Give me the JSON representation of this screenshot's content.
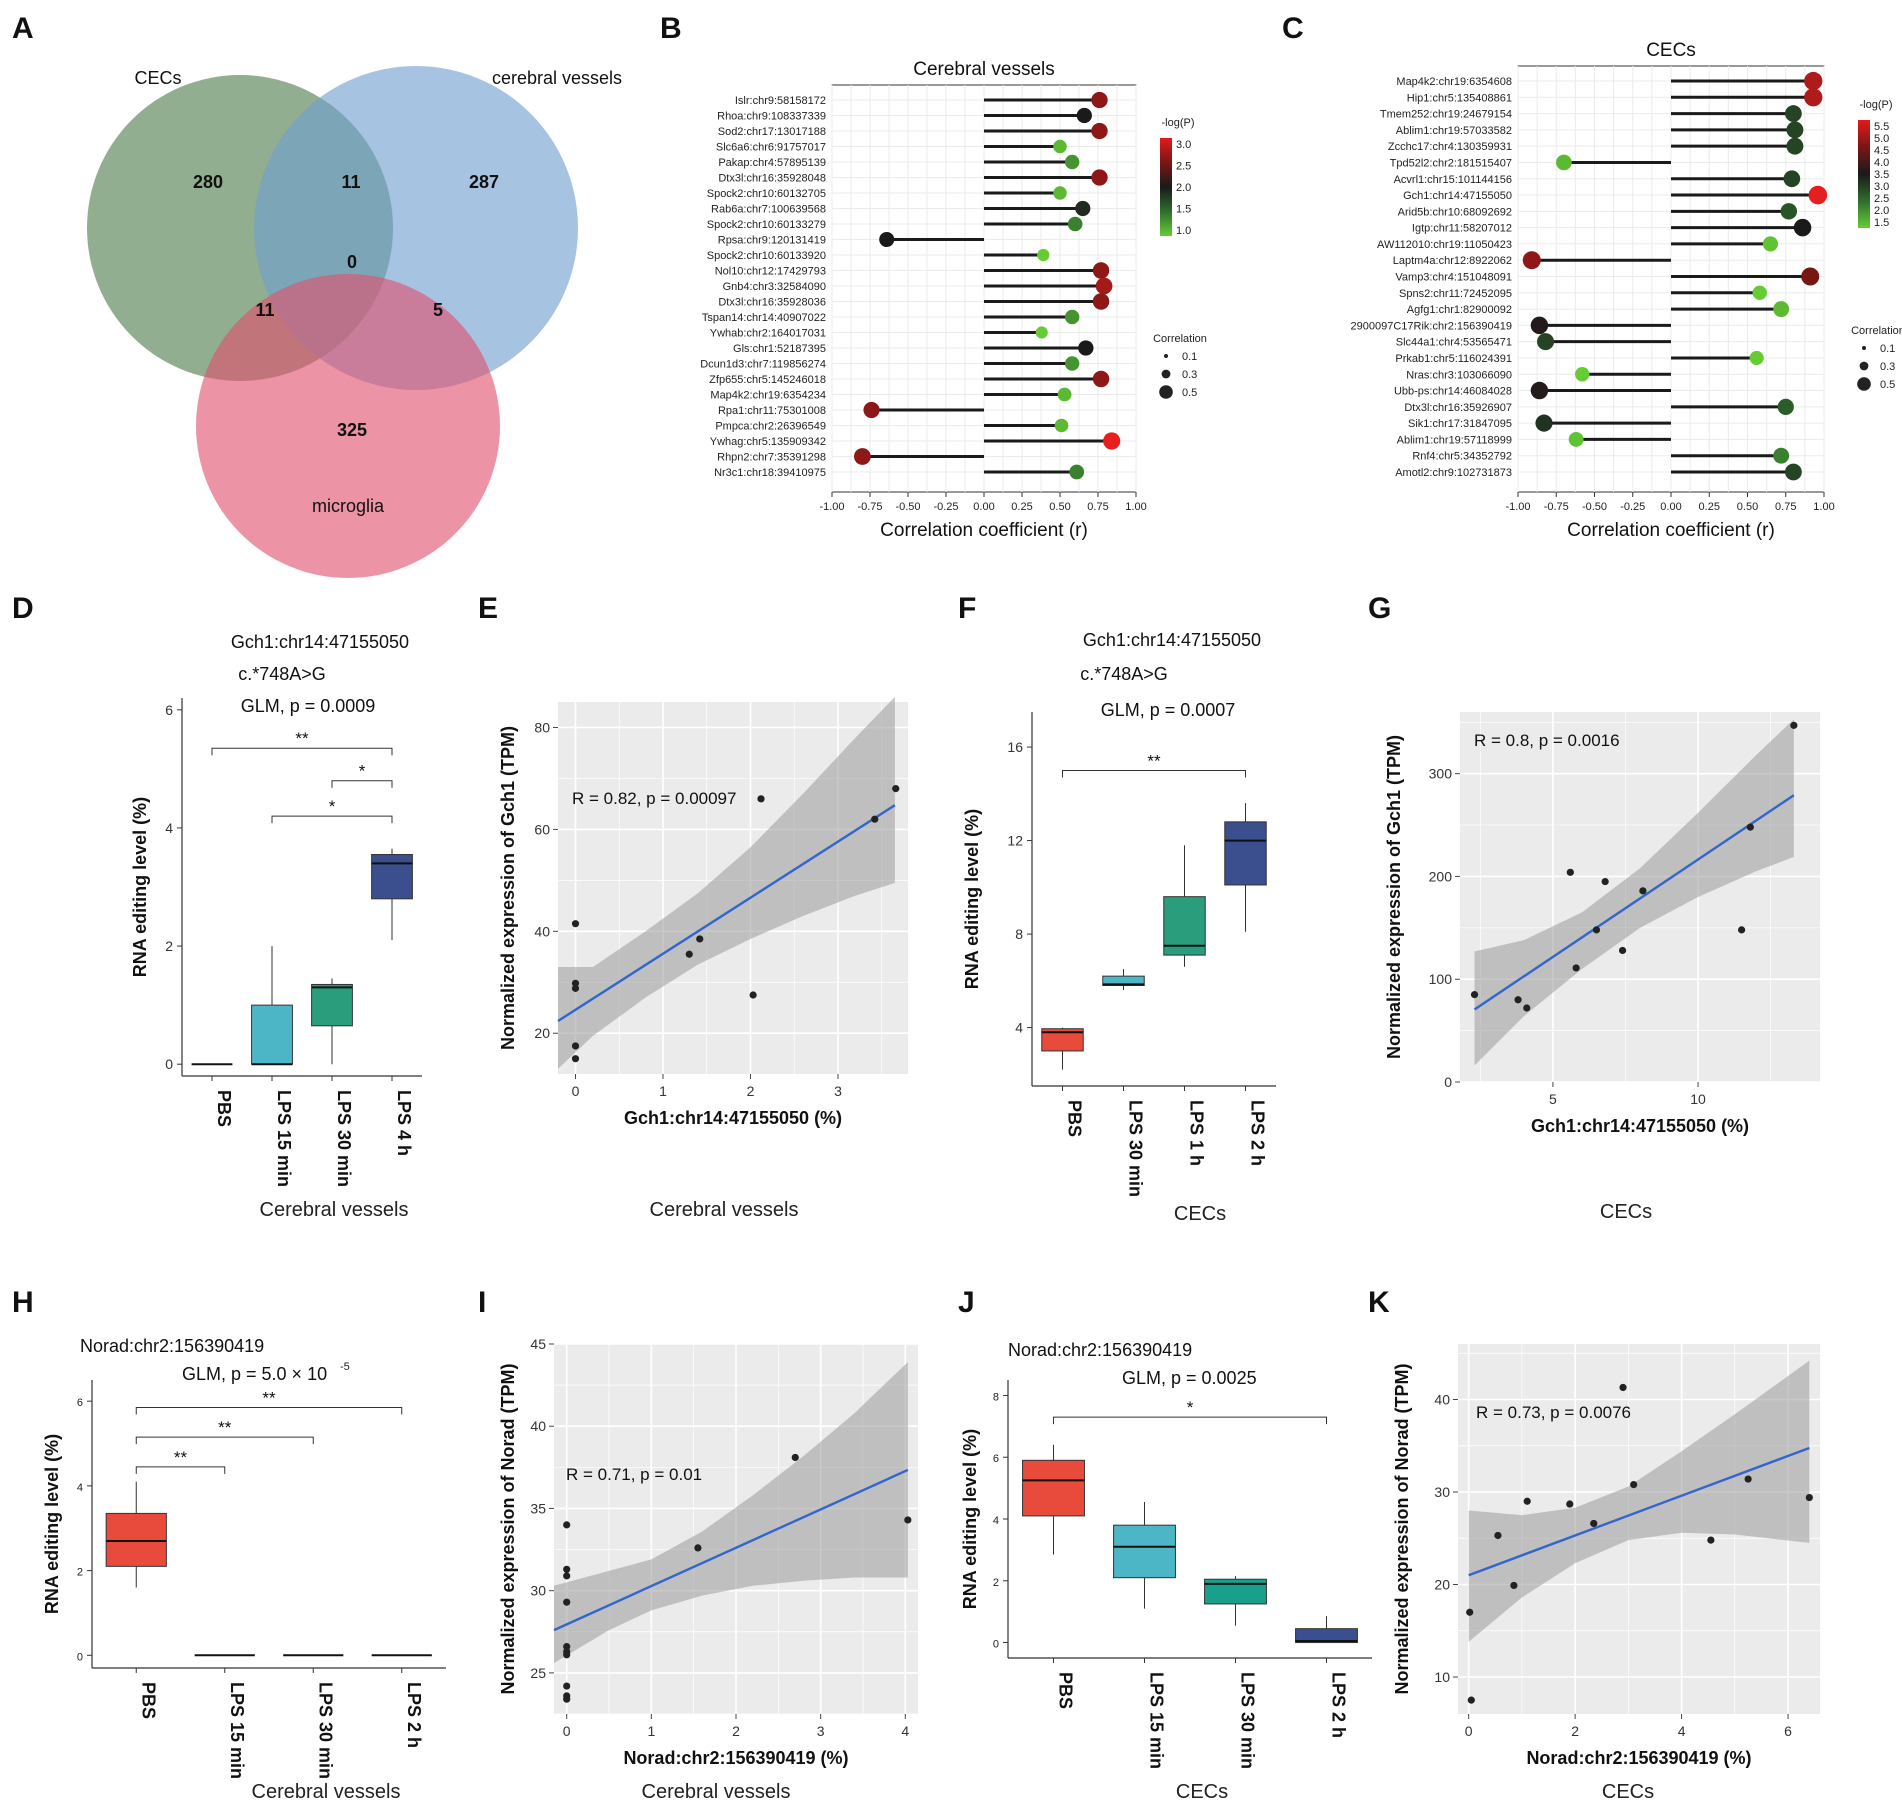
{
  "panel_letters": [
    "A",
    "B",
    "C",
    "D",
    "E",
    "F",
    "G",
    "H",
    "I",
    "J",
    "K"
  ],
  "chart_data": [
    {
      "panel": "A",
      "type": "venn",
      "sets": [
        {
          "name": "CECs",
          "color": "#4e7d4e"
        },
        {
          "name": "cerebral vessels",
          "color": "#6fa0d0"
        },
        {
          "name": "microglia",
          "color": "#e0506e"
        }
      ],
      "regions": {
        "cecs_only": "280",
        "vessels_only": "287",
        "microglia_only": "325",
        "cecs_vessels": "11",
        "cecs_microglia": "11",
        "vessels_microglia": "5",
        "all": "0"
      }
    },
    {
      "panel": "B",
      "type": "lollipop",
      "title": "Cerebral vessels",
      "xlabel": "Correlation coefficient (r)",
      "xlim": [
        -1,
        1
      ],
      "xticks": [
        "-1.00",
        "-0.75",
        "-0.50",
        "-0.25",
        "0.00",
        "0.25",
        "0.50",
        "0.75",
        "1.00"
      ],
      "genes": [
        "Islr:chr9:58158172",
        "Rhoa:chr9:108337339",
        "Sod2:chr17:13017188",
        "Slc6a6:chr6:91757017",
        "Pakap:chr4:57895139",
        "Dtx3l:chr16:35928048",
        "Spock2:chr10:60132705",
        "Rab6a:chr7:100639568",
        "Spock2:chr10:60133279",
        "Rpsa:chr9:120131419",
        "Spock2:chr10:60133920",
        "Nol10:chr12:17429793",
        "Gnb4:chr3:32584090",
        "Dtx3l:chr16:35928036",
        "Tspan14:chr14:40907022",
        "Ywhab:chr2:164017031",
        "Gls:chr1:52187395",
        "Dcun1d3:chr7:119856274",
        "Zfp655:chr5:145246018",
        "Map4k2:chr19:6354234",
        "Rpa1:chr11:75301008",
        "Pmpca:chr2:26396549",
        "Ywhag:chr5:135909342",
        "Rhpn2:chr7:35391298",
        "Nr3c1:chr18:39410975"
      ],
      "r": [
        0.76,
        0.66,
        0.76,
        0.5,
        0.58,
        0.76,
        0.5,
        0.65,
        0.6,
        -0.64,
        0.39,
        0.77,
        0.79,
        0.77,
        0.58,
        0.38,
        0.67,
        0.58,
        0.77,
        0.53,
        -0.74,
        0.51,
        0.84,
        -0.8,
        0.61
      ],
      "neglogp": [
        2.6,
        2.0,
        2.6,
        1.1,
        1.3,
        2.6,
        1.1,
        1.9,
        1.4,
        2.0,
        1.0,
        2.6,
        2.7,
        2.6,
        1.3,
        1.0,
        2.0,
        1.3,
        2.6,
        1.1,
        2.6,
        1.1,
        3.0,
        2.6,
        1.4
      ],
      "legend_color_title": "-log(P)",
      "legend_color_ticks": [
        "3.0",
        "2.5",
        "2.0",
        "1.5",
        "1.0"
      ],
      "legend_size_title": "Correlation",
      "legend_size_ticks": [
        "0.1",
        "0.3",
        "0.5"
      ]
    },
    {
      "panel": "C",
      "type": "lollipop",
      "title": "CECs",
      "xlabel": "Correlation coefficient (r)",
      "xlim": [
        -1,
        1
      ],
      "xticks": [
        "-1.00",
        "-0.75",
        "-0.50",
        "-0.25",
        "0.00",
        "0.25",
        "0.50",
        "0.75",
        "1.00"
      ],
      "genes": [
        "Map4k2:chr19:6354608",
        "Hip1:chr5:135408861",
        "Tmem252:chr19:24679154",
        "Ablim1:chr19:57033582",
        "Zcchc17:chr4:130359931",
        "Tpd52l2:chr2:181515407",
        "Acvrl1:chr15:101144156",
        "Gch1:chr14:47155050",
        "Arid5b:chr10:68092692",
        "Igtp:chr11:58207012",
        "AW112010:chr19:11050423",
        "Laptm4a:chr12:8922062",
        "Vamp3:chr4:151048091",
        "Spns2:chr11:72452095",
        "Agfg1:chr1:82900092",
        "2900097C17Rik:chr2:156390419",
        "Slc44a1:chr4:53565471",
        "Prkab1:chr5:116024391",
        "Nras:chr3:103066090",
        "Ubb-ps:chr14:46084028",
        "Dtx3l:chr16:35926907",
        "Sik1:chr17:31847095",
        "Ablim1:chr19:57118999",
        "Rnf4:chr5:34352792",
        "Amotl2:chr9:102731873"
      ],
      "r": [
        0.93,
        0.93,
        0.8,
        0.81,
        0.81,
        -0.7,
        0.79,
        0.96,
        0.77,
        0.86,
        0.65,
        -0.91,
        0.91,
        0.58,
        0.72,
        -0.86,
        -0.82,
        0.56,
        -0.58,
        -0.86,
        0.75,
        -0.83,
        -0.62,
        0.72,
        0.8
      ],
      "neglogp": [
        5.0,
        5.0,
        3.0,
        3.0,
        3.0,
        1.7,
        3.0,
        5.6,
        2.8,
        3.5,
        1.6,
        4.7,
        4.5,
        1.5,
        1.7,
        3.6,
        3.0,
        1.5,
        1.5,
        3.6,
        2.7,
        3.2,
        1.6,
        2.3,
        3.0
      ],
      "legend_color_title": "-log(P)",
      "legend_color_ticks": [
        "5.5",
        "5.0",
        "4.5",
        "4.0",
        "3.5",
        "3.0",
        "2.5",
        "2.0",
        "1.5"
      ],
      "legend_size_title": "Correlation",
      "legend_size_ticks": [
        "0.1",
        "0.3",
        "0.5"
      ]
    },
    {
      "panel": "D",
      "type": "box",
      "title_lines": [
        "Gch1:chr14:47155050",
        "c.*748A>G",
        "GLM, p = 0.0009"
      ],
      "ylabel": "RNA editing level (%)",
      "ylim": [
        -0.2,
        6.2
      ],
      "yticks": [
        0,
        2,
        4,
        6
      ],
      "categories": [
        "PBS",
        "LPS 15 min",
        "LPS 30 min",
        "LPS 4 h"
      ],
      "colors": [
        "#e84b3c",
        "#4db6c6",
        "#2a9d7c",
        "#3b4f8f"
      ],
      "boxes": [
        {
          "q1": 0,
          "median": 0,
          "q3": 0,
          "lo": 0,
          "hi": 0
        },
        {
          "q1": 0,
          "median": 0,
          "q3": 1.0,
          "lo": 0,
          "hi": 2.0
        },
        {
          "q1": 0.65,
          "median": 1.3,
          "q3": 1.35,
          "lo": 0,
          "hi": 1.45
        },
        {
          "q1": 2.8,
          "median": 3.4,
          "q3": 3.55,
          "lo": 2.1,
          "hi": 3.65
        }
      ],
      "brackets": [
        {
          "from": 0,
          "to": 3,
          "y": 5.35,
          "label": "**"
        },
        {
          "from": 2,
          "to": 3,
          "y": 4.8,
          "label": "*"
        },
        {
          "from": 1,
          "to": 3,
          "y": 4.2,
          "label": "*"
        }
      ],
      "caption": "Cerebral vessels"
    },
    {
      "panel": "E",
      "type": "scatter",
      "xlabel": "Gch1:chr14:47155050 (%)",
      "ylabel": "Normalized expression of Gch1 (TPM)",
      "xlim": [
        -0.2,
        3.8
      ],
      "ylim": [
        12,
        85
      ],
      "xticks": [
        0,
        1,
        2,
        3
      ],
      "yticks": [
        20,
        40,
        60,
        80
      ],
      "x": [
        0,
        0,
        0,
        0,
        0,
        1.3,
        1.42,
        2.03,
        2.12,
        3.42,
        3.66
      ],
      "y": [
        41.5,
        29.8,
        28.8,
        17.5,
        15.0,
        35.5,
        38.5,
        27.5,
        66.0,
        62.0,
        68.0
      ],
      "fit": {
        "slope": 11.0,
        "intercept": 24.6
      },
      "band": [
        {
          "x": -0.2,
          "lo": 13.0,
          "hi": 33.0
        },
        {
          "x": 0.2,
          "lo": 19.5,
          "hi": 33.0
        },
        {
          "x": 0.8,
          "lo": 27.0,
          "hi": 40.0
        },
        {
          "x": 1.4,
          "lo": 33.5,
          "hi": 47.5
        },
        {
          "x": 2.0,
          "lo": 38.5,
          "hi": 56.5
        },
        {
          "x": 2.6,
          "lo": 43.0,
          "hi": 67.0
        },
        {
          "x": 3.2,
          "lo": 47.0,
          "hi": 78.0
        },
        {
          "x": 3.65,
          "lo": 49.5,
          "hi": 86.0
        }
      ],
      "stat": "R = 0.82, p = 0.00097",
      "caption": "Cerebral vessels"
    },
    {
      "panel": "F",
      "type": "box",
      "title_lines": [
        "Gch1:chr14:47155050",
        "c.*748A>G",
        "GLM, p = 0.0007"
      ],
      "ylabel": "RNA editing level (%)",
      "ylim": [
        1.5,
        17.5
      ],
      "yticks": [
        4,
        8,
        12,
        16
      ],
      "categories": [
        "PBS",
        "LPS 30 min",
        "LPS 1 h",
        "LPS  2 h"
      ],
      "colors": [
        "#e84b3c",
        "#4db6c6",
        "#2a9d7c",
        "#3b4f8f"
      ],
      "boxes": [
        {
          "q1": 3.0,
          "median": 3.8,
          "q3": 3.95,
          "lo": 2.2,
          "hi": 4.0
        },
        {
          "q1": 5.8,
          "median": 5.85,
          "q3": 6.2,
          "lo": 5.6,
          "hi": 6.5
        },
        {
          "q1": 7.1,
          "median": 7.5,
          "q3": 9.6,
          "lo": 6.6,
          "hi": 11.8
        },
        {
          "q1": 10.1,
          "median": 12.0,
          "q3": 12.8,
          "lo": 8.1,
          "hi": 13.6
        }
      ],
      "brackets": [
        {
          "from": 0,
          "to": 3,
          "y": 15.0,
          "label": "**"
        }
      ],
      "caption": "CECs"
    },
    {
      "panel": "G",
      "type": "scatter",
      "xlabel": "Gch1:chr14:47155050 (%)",
      "ylabel": "Normalized expression of Gch1 (TPM)",
      "xlim": [
        1.8,
        14.2
      ],
      "ylim": [
        0,
        360
      ],
      "xticks": [
        5,
        10
      ],
      "yticks": [
        0,
        100,
        200,
        300
      ],
      "x": [
        2.3,
        3.8,
        4.1,
        5.6,
        5.8,
        6.5,
        6.8,
        7.4,
        8.1,
        11.5,
        11.8,
        13.3
      ],
      "y": [
        85,
        80,
        72,
        204,
        111,
        148,
        195,
        128,
        186,
        148,
        248,
        347
      ],
      "fit": {
        "slope": 18.95,
        "intercept": 27
      },
      "band": [
        {
          "x": 2.3,
          "lo": 16,
          "hi": 127
        },
        {
          "x": 4.0,
          "lo": 64,
          "hi": 138
        },
        {
          "x": 6.0,
          "lo": 110,
          "hi": 165
        },
        {
          "x": 8.0,
          "lo": 150,
          "hi": 208
        },
        {
          "x": 10.0,
          "lo": 180,
          "hi": 262
        },
        {
          "x": 12.0,
          "lo": 205,
          "hi": 318
        },
        {
          "x": 13.3,
          "lo": 219,
          "hi": 353
        }
      ],
      "stat": "R = 0.8, p = 0.0016",
      "caption": "CECs"
    },
    {
      "panel": "H",
      "type": "box",
      "title_lines": [
        "Norad:chr2:156390419",
        "GLM, p = 5.0 × 10",
        "-5"
      ],
      "ylabel": "RNA editing level (%)",
      "ylim": [
        -0.3,
        6.5
      ],
      "yticks": [
        0,
        2,
        4,
        6
      ],
      "categories": [
        "PBS",
        "LPS 15 min",
        "LPS 30 min",
        "LPS 2 h"
      ],
      "colors": [
        "#e84b3c",
        "#e84b3c",
        "#e84b3c",
        "#e84b3c"
      ],
      "boxes": [
        {
          "q1": 2.1,
          "median": 2.7,
          "q3": 3.35,
          "lo": 1.6,
          "hi": 4.1
        },
        {
          "q1": 0,
          "median": 0,
          "q3": 0,
          "lo": 0,
          "hi": 0
        },
        {
          "q1": 0,
          "median": 0,
          "q3": 0,
          "lo": 0,
          "hi": 0
        },
        {
          "q1": 0,
          "median": 0,
          "q3": 0,
          "lo": 0,
          "hi": 0
        }
      ],
      "brackets": [
        {
          "from": 0,
          "to": 3,
          "y": 5.85,
          "label": "**"
        },
        {
          "from": 0,
          "to": 2,
          "y": 5.15,
          "label": "**"
        },
        {
          "from": 0,
          "to": 1,
          "y": 4.45,
          "label": "**"
        }
      ],
      "caption": "Cerebral vessels"
    },
    {
      "panel": "I",
      "type": "scatter",
      "xlabel": "Norad:chr2:156390419 (%)",
      "ylabel": "Normalized expression of Norad (TPM)",
      "xlim": [
        -0.15,
        4.15
      ],
      "ylim": [
        22.5,
        45
      ],
      "xticks": [
        0,
        1,
        2,
        3,
        4
      ],
      "yticks": [
        25,
        30,
        35,
        40,
        45
      ],
      "x": [
        0,
        0,
        0,
        0,
        0,
        0,
        0,
        0,
        0,
        0,
        1.55,
        2.7,
        4.03
      ],
      "y": [
        34.0,
        31.3,
        30.9,
        29.3,
        26.6,
        26.3,
        24.2,
        23.6,
        23.4,
        26.1,
        32.6,
        38.1,
        34.3
      ],
      "fit": {
        "slope": 2.33,
        "intercept": 27.95
      },
      "band": [
        {
          "x": -0.15,
          "lo": 25.6,
          "hi": 30.3
        },
        {
          "x": 0.5,
          "lo": 27.6,
          "hi": 31.2
        },
        {
          "x": 1.0,
          "lo": 28.8,
          "hi": 31.9
        },
        {
          "x": 1.6,
          "lo": 29.7,
          "hi": 33.6
        },
        {
          "x": 2.2,
          "lo": 30.3,
          "hi": 35.8
        },
        {
          "x": 2.8,
          "lo": 30.6,
          "hi": 38.2
        },
        {
          "x": 3.4,
          "lo": 30.8,
          "hi": 40.8
        },
        {
          "x": 4.03,
          "lo": 30.8,
          "hi": 43.9
        }
      ],
      "stat": "R = 0.71, p = 0.01",
      "caption": "Cerebral vessels"
    },
    {
      "panel": "J",
      "type": "box",
      "title_lines": [
        "Norad:chr2:156390419",
        "GLM, p = 0.0025"
      ],
      "ylabel": "RNA editing level (%)",
      "ylim": [
        -0.5,
        8.5
      ],
      "yticks": [
        0,
        2,
        4,
        6,
        8
      ],
      "categories": [
        "PBS",
        "LPS 15 min",
        "LPS 30 min",
        "LPS 2 h"
      ],
      "colors": [
        "#e84b3c",
        "#4db6c6",
        "#18a08a",
        "#3b4f8f"
      ],
      "boxes": [
        {
          "q1": 4.1,
          "median": 5.25,
          "q3": 5.9,
          "lo": 2.85,
          "hi": 6.4
        },
        {
          "q1": 2.1,
          "median": 3.1,
          "q3": 3.8,
          "lo": 1.1,
          "hi": 4.55
        },
        {
          "q1": 1.25,
          "median": 1.9,
          "q3": 2.05,
          "lo": 0.55,
          "hi": 2.15
        },
        {
          "q1": 0,
          "median": 0.05,
          "q3": 0.45,
          "lo": 0,
          "hi": 0.85
        }
      ],
      "brackets": [
        {
          "from": 0,
          "to": 3,
          "y": 7.3,
          "label": "*"
        }
      ],
      "caption": "CECs"
    },
    {
      "panel": "K",
      "type": "scatter",
      "xlabel": "Norad:chr2:156390419 (%)",
      "ylabel": "Normalized expression of Norad (TPM)",
      "xlim": [
        -0.2,
        6.6
      ],
      "ylim": [
        6,
        46
      ],
      "xticks": [
        0,
        2,
        4,
        6
      ],
      "yticks": [
        10,
        20,
        30,
        40
      ],
      "x": [
        0.05,
        0.02,
        0.55,
        0.85,
        1.1,
        1.9,
        2.35,
        2.9,
        3.1,
        4.55,
        5.25,
        6.4
      ],
      "y": [
        7.5,
        17.0,
        25.3,
        19.9,
        29.0,
        28.7,
        26.6,
        41.3,
        30.8,
        24.8,
        31.4,
        29.4
      ],
      "fit": {
        "slope": 2.15,
        "intercept": 21.0
      },
      "band": [
        {
          "x": 0.0,
          "lo": 13.8,
          "hi": 28.0
        },
        {
          "x": 1.0,
          "lo": 18.6,
          "hi": 27.5
        },
        {
          "x": 2.0,
          "lo": 22.3,
          "hi": 28.3
        },
        {
          "x": 3.0,
          "lo": 24.8,
          "hi": 30.6
        },
        {
          "x": 4.0,
          "lo": 25.6,
          "hi": 34.4
        },
        {
          "x": 5.0,
          "lo": 25.4,
          "hi": 38.4
        },
        {
          "x": 6.4,
          "lo": 24.5,
          "hi": 44.2
        }
      ],
      "stat": "R = 0.73, p = 0.0076",
      "caption": "CECs"
    }
  ]
}
